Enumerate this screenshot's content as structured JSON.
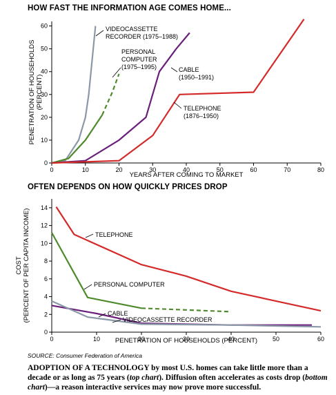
{
  "charts_title_top": "HOW FAST THE INFORMATION AGE COMES HOME...",
  "charts_title_bottom": "OFTEN DEPENDS ON HOW QUICKLY PRICES DROP",
  "source": "SOURCE: Consumer Federation of America",
  "caption": {
    "p1": "ADOPTION OF A TECHNOLOGY by most U.S. homes can take little more than a decade or as long as 75 years (",
    "i1": "top chart",
    "p2": "). Diffusion often accelerates as costs drop (",
    "i2": "bottom chart",
    "p3": ")—a reason interactive services may now prove more successful."
  },
  "colors": {
    "vcr": "#8a98a8",
    "pc": "#4d8a2a",
    "cable": "#6a1f7a",
    "telephone": "#d42a2a",
    "axis": "#000000"
  },
  "chart_data": [
    {
      "type": "line",
      "title": "HOW FAST THE INFORMATION AGE COMES HOME...",
      "xlabel": "YEARS AFTER COMING TO MARKET",
      "ylabel": [
        "PENETRATION OF HOUSEHOLDS",
        "(PERCENT)"
      ],
      "xlim": [
        0,
        80
      ],
      "ylim": [
        0,
        62
      ],
      "xticks": [
        0,
        10,
        20,
        30,
        40,
        50,
        60,
        70,
        80
      ],
      "yticks": [
        0,
        10,
        20,
        30,
        40,
        50,
        60
      ],
      "series": [
        {
          "key": "vcr",
          "labels": [
            "VIDEOCASSETTE",
            "RECORDER (1975–1988)"
          ],
          "x": [
            0,
            4,
            8,
            10,
            11,
            12,
            13
          ],
          "y": [
            0,
            1,
            10,
            20,
            30,
            45,
            60
          ]
        },
        {
          "key": "pc",
          "labels": [
            "PERSONAL",
            "COMPUTER",
            "(1975–1995)"
          ],
          "x": [
            0,
            5,
            10,
            15
          ],
          "y": [
            0,
            2,
            10,
            21
          ],
          "dashed_x": [
            15,
            18,
            20
          ],
          "dashed_y": [
            21,
            31,
            39
          ]
        },
        {
          "key": "cable",
          "labels": [
            "CABLE",
            "(1950–1991)"
          ],
          "x": [
            0,
            10,
            20,
            28,
            32,
            37,
            41
          ],
          "y": [
            0,
            1,
            10,
            20,
            40,
            50,
            57
          ]
        },
        {
          "key": "telephone",
          "labels": [
            "TELEPHONE",
            "(1876–1950)"
          ],
          "x": [
            0,
            20,
            30,
            38,
            60,
            75
          ],
          "y": [
            0,
            1,
            12,
            30,
            31,
            63
          ]
        }
      ]
    },
    {
      "type": "line",
      "title": "OFTEN DEPENDS ON HOW QUICKLY PRICES DROP",
      "xlabel": "PENETRATION OF HOUSEHOLDS (PERCENT)",
      "ylabel": [
        "COST",
        "(PERCENT OF PER CAPITA INCOME)"
      ],
      "xlim": [
        0,
        60
      ],
      "ylim": [
        0,
        15
      ],
      "xticks": [
        0,
        10,
        20,
        30,
        40,
        50,
        60
      ],
      "yticks": [
        0,
        2,
        4,
        6,
        8,
        10,
        12,
        14
      ],
      "series": [
        {
          "key": "telephone",
          "labels": [
            "TELEPHONE"
          ],
          "x": [
            1,
            5,
            20,
            30,
            40,
            60
          ],
          "y": [
            14.1,
            11.0,
            7.6,
            6.3,
            4.6,
            2.4
          ]
        },
        {
          "key": "pc",
          "labels": [
            "PERSONAL COMPUTER"
          ],
          "x": [
            0,
            8,
            20
          ],
          "y": [
            11.2,
            3.9,
            2.7
          ],
          "dashed_x": [
            20,
            30,
            40
          ],
          "dashed_y": [
            2.7,
            2.5,
            2.3
          ]
        },
        {
          "key": "cable",
          "labels": [
            "CABLE"
          ],
          "x": [
            0,
            10,
            20,
            40,
            58
          ],
          "y": [
            3.0,
            2.1,
            1.0,
            0.8,
            0.8
          ]
        },
        {
          "key": "vcr",
          "labels": [
            "VIDEOCASSETTE RECORDER"
          ],
          "x": [
            0,
            8,
            20,
            40,
            60
          ],
          "y": [
            3.5,
            1.7,
            0.9,
            0.8,
            0.6
          ]
        }
      ]
    }
  ]
}
